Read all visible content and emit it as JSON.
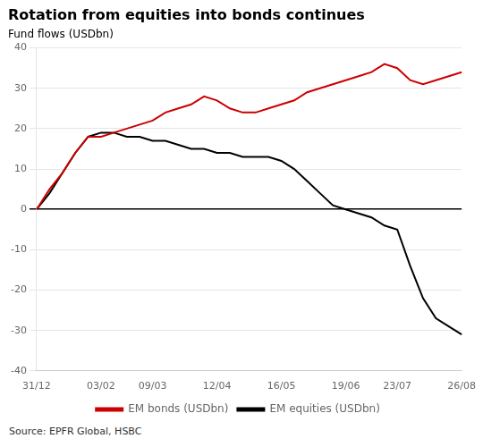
{
  "chart_data": {
    "type": "line",
    "title": "Rotation from equities into bonds continues",
    "subtitle": "Fund flows (USDbn)",
    "annotations": [
      "Source: EPFR Global, HSBC"
    ],
    "categories": [
      "31/12",
      null,
      null,
      null,
      null,
      "03/02",
      null,
      null,
      null,
      "09/03",
      null,
      null,
      null,
      null,
      "12/04",
      null,
      null,
      null,
      null,
      "16/05",
      null,
      null,
      null,
      null,
      "19/06",
      null,
      null,
      null,
      "23/07",
      null,
      null,
      null,
      null,
      "26/08"
    ],
    "series": [
      {
        "name": "EM bonds (USDbn)",
        "color": "#cc0000",
        "values": [
          0,
          5,
          9,
          14,
          18,
          18,
          19,
          20,
          21,
          22,
          24,
          25,
          26,
          28,
          27,
          25,
          24,
          24,
          25,
          26,
          27,
          29,
          30,
          31,
          32,
          33,
          34,
          36,
          35,
          32,
          31,
          32,
          33,
          34
        ]
      },
      {
        "name": "EM equities (USDbn)",
        "color": "#000000",
        "values": [
          0,
          4,
          9,
          14,
          18,
          19,
          19,
          18,
          18,
          17,
          17,
          16,
          15,
          15,
          14,
          14,
          13,
          13,
          13,
          12,
          10,
          7,
          4,
          1,
          0,
          -1,
          -2,
          -4,
          -5,
          -14,
          -22,
          -27,
          -29,
          -31
        ]
      }
    ],
    "ylim": [
      -40,
      40
    ],
    "yticks": [
      -40,
      -30,
      -20,
      -10,
      0,
      10,
      20,
      30,
      40
    ],
    "grid": true,
    "legend": "bottom"
  }
}
